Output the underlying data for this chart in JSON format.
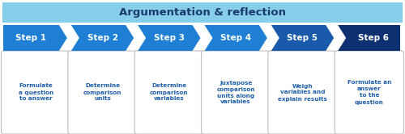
{
  "title": "Argumentation & reflection",
  "title_bg_color": "#87ceeb",
  "title_text_color": "#1a3a6e",
  "steps": [
    "Step 1",
    "Step 2",
    "Step 3",
    "Step 4",
    "Step 5",
    "Step 6"
  ],
  "step_colors": [
    "#1e7fd4",
    "#1e7fd4",
    "#1e7fd4",
    "#1e7fd4",
    "#1a5aaa",
    "#0d3070"
  ],
  "step_text_color": "#ffffff",
  "descriptions": [
    "Formulate\na question\nto answer",
    "Determine\ncomparison\nunits",
    "Determine\ncomparison\nvariables",
    "Juxtapose\ncomparison\nunits along\nvariables",
    "Weigh\nvariables and\nexplain results",
    "Formulate an\nanswer\nto the\nquestion"
  ],
  "desc_text_color": "#1e5faa",
  "box_edge_color": "#c0c0c0",
  "box_bg_color": "#ffffff",
  "fig_bg_color": "#ffffff",
  "fig_w": 5.0,
  "fig_h": 1.66,
  "dpi": 100
}
